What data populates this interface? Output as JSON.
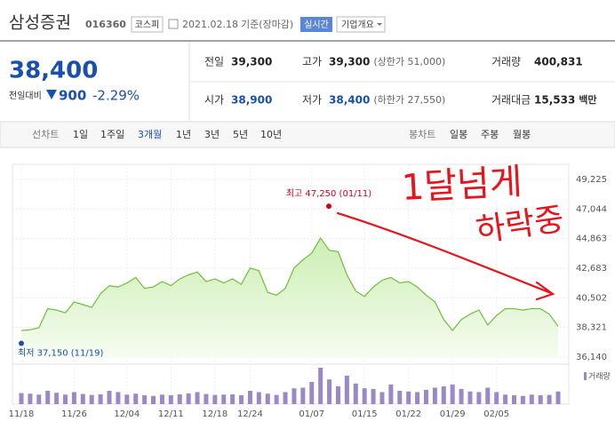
{
  "header": {
    "name": "삼성증권",
    "code": "016360",
    "market": "코스피",
    "date": "2021.02.18",
    "basis": "기준(장마감)",
    "realtime": "실시간",
    "company_info": "기업개요"
  },
  "quote": {
    "price": "38,400",
    "change_label": "전일대비",
    "change": "900",
    "change_rate": "-2.29%"
  },
  "stats": {
    "rows": [
      [
        {
          "label": "전일",
          "value": "39,300"
        },
        {
          "label": "고가",
          "value": "39,300",
          "note": "(상한가 51,000)"
        },
        {
          "label": "거래량",
          "value": "400,831"
        }
      ],
      [
        {
          "label": "시가",
          "value": "38,900"
        },
        {
          "label": "저가",
          "value": "38,400",
          "note": "(하한가 27,550)"
        },
        {
          "label": "거래대금",
          "value": "15,533",
          "unit": "백만"
        }
      ]
    ]
  },
  "tabs": {
    "line_label": "선차트",
    "line": [
      "1일",
      "1주일",
      "3개월",
      "1년",
      "3년",
      "5년",
      "10년"
    ],
    "active": 2,
    "candle_label": "봉차트",
    "candle": [
      "일봉",
      "주봉",
      "월봉"
    ]
  },
  "chart_data": {
    "type": "line",
    "color": "#6cbf3c",
    "categories": [
      "11/18",
      null,
      null,
      null,
      null,
      null,
      "11/26",
      null,
      null,
      null,
      null,
      null,
      "12/04",
      null,
      null,
      null,
      null,
      "12/11",
      null,
      null,
      null,
      null,
      "12/18",
      null,
      null,
      null,
      "12/24",
      null,
      null,
      null,
      null,
      null,
      null,
      "01/07",
      null,
      null,
      null,
      null,
      null,
      "01/15",
      null,
      null,
      null,
      null,
      "01/22",
      null,
      null,
      null,
      null,
      "01/29",
      null,
      null,
      null,
      null,
      "02/05",
      null,
      null,
      null,
      null,
      null,
      null,
      null
    ],
    "values": [
      38100,
      38150,
      38300,
      39700,
      39600,
      39400,
      40200,
      40000,
      39800,
      40800,
      41400,
      41300,
      41600,
      42000,
      41200,
      41300,
      41700,
      41400,
      41900,
      42200,
      42400,
      41700,
      41900,
      41600,
      41900,
      41500,
      42700,
      42500,
      40900,
      40700,
      41200,
      42700,
      43300,
      43800,
      44900,
      44000,
      43900,
      42200,
      41000,
      40600,
      41300,
      41800,
      42000,
      41600,
      41700,
      41300,
      40700,
      40200,
      38900,
      38100,
      38900,
      39300,
      39600,
      38500,
      39200,
      39700,
      39700,
      39600,
      39700,
      39700,
      39300,
      38400
    ],
    "volume": {
      "name": "거래량",
      "color": "#9b88c9",
      "values": [
        350000,
        330000,
        300000,
        420000,
        360000,
        300000,
        380000,
        320000,
        290000,
        310000,
        420000,
        380000,
        300000,
        330000,
        280000,
        260000,
        300000,
        280000,
        310000,
        340000,
        380000,
        320000,
        290000,
        300000,
        310000,
        280000,
        420000,
        380000,
        330000,
        290000,
        380000,
        500000,
        520000,
        700000,
        1150000,
        780000,
        560000,
        900000,
        650000,
        500000,
        480000,
        380000,
        620000,
        420000,
        400000,
        380000,
        450000,
        520000,
        560000,
        620000,
        480000,
        400000,
        380000,
        520000,
        380000,
        300000,
        280000,
        260000,
        300000,
        280000,
        290000,
        400831
      ]
    },
    "ylim": [
      36140,
      49225
    ],
    "yticks": [
      {
        "value": 36140,
        "label": "36,140"
      },
      {
        "value": 38321,
        "label": "38,321"
      },
      {
        "value": 40502,
        "label": "40,502"
      },
      {
        "value": 42683,
        "label": "42,683"
      },
      {
        "value": 44863,
        "label": "44,863"
      },
      {
        "value": 47044,
        "label": "47,044"
      },
      {
        "value": 49225,
        "label": "49,225"
      }
    ],
    "grid": true,
    "annotations": [
      {
        "text": "최고 47,250 (01/11)",
        "value": 47250,
        "color": "#d0021b"
      },
      {
        "text": "최저 37,150 (11/19)",
        "value": 37150,
        "color": "#1a4fb0"
      }
    ],
    "handwriting": {
      "color": "#e8141c",
      "lines": [
        "1달넘게",
        "하락중"
      ]
    }
  }
}
